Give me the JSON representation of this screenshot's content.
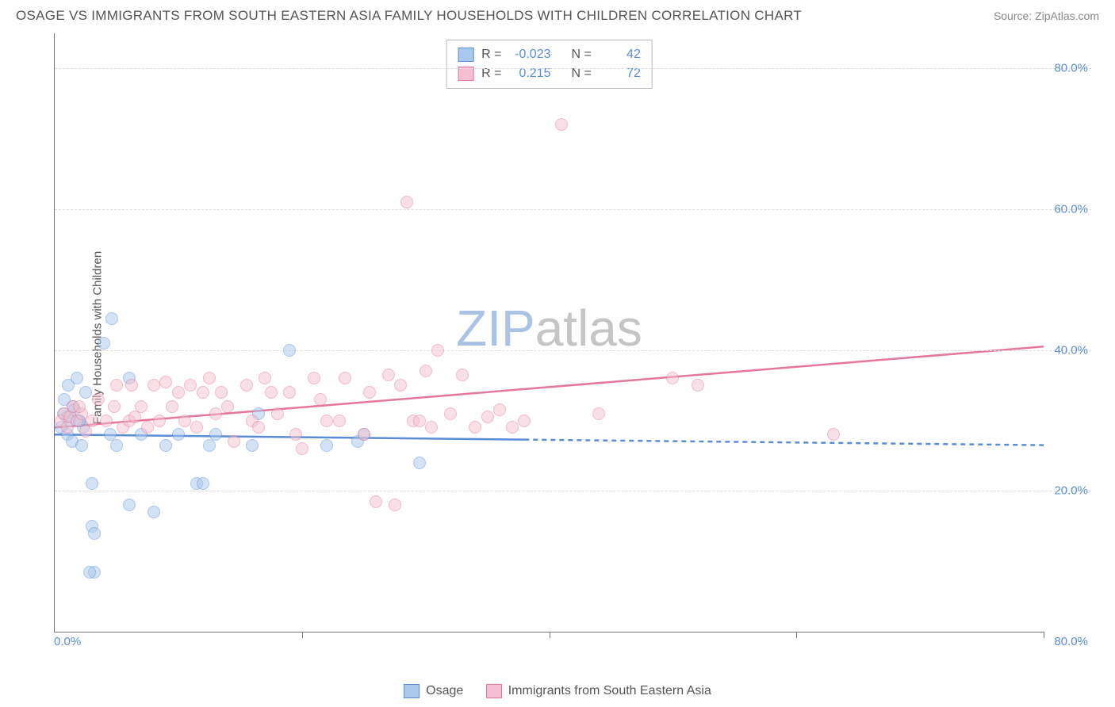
{
  "title": "OSAGE VS IMMIGRANTS FROM SOUTH EASTERN ASIA FAMILY HOUSEHOLDS WITH CHILDREN CORRELATION CHART",
  "source": "Source: ZipAtlas.com",
  "ylabel": "Family Households with Children",
  "watermark_zip": "ZIP",
  "watermark_atlas": "atlas",
  "chart": {
    "type": "scatter",
    "xlim": [
      0,
      80
    ],
    "ylim": [
      0,
      85
    ],
    "x_tick_min_label": "0.0%",
    "x_tick_max_label": "80.0%",
    "y_ticks": [
      20,
      40,
      60,
      80
    ],
    "y_tick_labels": [
      "20.0%",
      "40.0%",
      "60.0%",
      "80.0%"
    ],
    "grid_color": "#dddddd",
    "axis_color": "#777777",
    "tick_label_color": "#5b8dd6",
    "background_color": "#ffffff",
    "point_radius": 8,
    "point_opacity": 0.5
  },
  "series": [
    {
      "key": "osage",
      "label": "Osage",
      "color_fill": "#a9c8ec",
      "color_stroke": "#5b8dd6",
      "R": "-0.023",
      "N": "42",
      "trend": {
        "y_at_x0": 28,
        "y_at_xmax": 26.5,
        "solid_until_x": 38
      },
      "points": [
        [
          0.5,
          29
        ],
        [
          0.7,
          31
        ],
        [
          0.8,
          33
        ],
        [
          1.0,
          28
        ],
        [
          1.1,
          35
        ],
        [
          1.2,
          30
        ],
        [
          1.4,
          27
        ],
        [
          1.5,
          32
        ],
        [
          1.8,
          36
        ],
        [
          2.0,
          30
        ],
        [
          2.2,
          26.5
        ],
        [
          2.3,
          29
        ],
        [
          2.5,
          34
        ],
        [
          3.0,
          21
        ],
        [
          3.0,
          15
        ],
        [
          3.2,
          14
        ],
        [
          3.2,
          8.5
        ],
        [
          2.8,
          8.5
        ],
        [
          4.0,
          41
        ],
        [
          4.5,
          28
        ],
        [
          4.6,
          44.5
        ],
        [
          5.0,
          26.5
        ],
        [
          6.0,
          18
        ],
        [
          6.0,
          36
        ],
        [
          7.0,
          28
        ],
        [
          8.0,
          17
        ],
        [
          9.0,
          26.5
        ],
        [
          10.0,
          28
        ],
        [
          11.5,
          21
        ],
        [
          12.0,
          21
        ],
        [
          12.5,
          26.5
        ],
        [
          13.0,
          28
        ],
        [
          16.0,
          26.5
        ],
        [
          16.5,
          31
        ],
        [
          19.0,
          40
        ],
        [
          22.0,
          26.5
        ],
        [
          24.5,
          27
        ],
        [
          25.0,
          28
        ],
        [
          29.5,
          24
        ],
        [
          1.6,
          31.5
        ],
        [
          2.0,
          30
        ],
        [
          1.0,
          30.5
        ]
      ]
    },
    {
      "key": "seasia",
      "label": "Immigrants from South Eastern Asia",
      "color_fill": "#f4c0cf",
      "color_stroke": "#e5779c",
      "R": "0.215",
      "N": "72",
      "trend": {
        "y_at_x0": 29,
        "y_at_xmax": 40.5,
        "solid_until_x": 80
      },
      "points": [
        [
          0.5,
          30
        ],
        [
          0.8,
          31
        ],
        [
          1.0,
          29
        ],
        [
          1.2,
          30.5
        ],
        [
          1.5,
          32
        ],
        [
          1.8,
          30
        ],
        [
          2.2,
          31
        ],
        [
          2.5,
          28.5
        ],
        [
          3.0,
          30
        ],
        [
          3.5,
          33
        ],
        [
          4.2,
          30
        ],
        [
          4.8,
          32
        ],
        [
          5.0,
          35
        ],
        [
          5.5,
          29
        ],
        [
          6.0,
          30
        ],
        [
          6.2,
          35
        ],
        [
          6.5,
          30.5
        ],
        [
          7.0,
          32
        ],
        [
          7.5,
          29
        ],
        [
          8.0,
          35
        ],
        [
          8.5,
          30
        ],
        [
          9.0,
          35.5
        ],
        [
          9.5,
          32
        ],
        [
          10.0,
          34
        ],
        [
          10.5,
          30
        ],
        [
          11.0,
          35
        ],
        [
          11.5,
          29
        ],
        [
          12.0,
          34
        ],
        [
          12.5,
          36
        ],
        [
          13.0,
          31
        ],
        [
          13.5,
          34
        ],
        [
          14.0,
          32
        ],
        [
          14.5,
          27
        ],
        [
          15.5,
          35
        ],
        [
          16.0,
          30
        ],
        [
          16.5,
          29
        ],
        [
          17.0,
          36
        ],
        [
          17.5,
          34
        ],
        [
          18.0,
          31
        ],
        [
          19.0,
          34
        ],
        [
          19.5,
          28
        ],
        [
          20.0,
          26
        ],
        [
          21.0,
          36
        ],
        [
          21.5,
          33
        ],
        [
          22.0,
          30
        ],
        [
          23.0,
          30
        ],
        [
          23.5,
          36
        ],
        [
          25.0,
          28
        ],
        [
          25.5,
          34
        ],
        [
          26.0,
          18.5
        ],
        [
          27.0,
          36.5
        ],
        [
          27.5,
          18
        ],
        [
          28.0,
          35
        ],
        [
          29.0,
          30
        ],
        [
          29.5,
          30
        ],
        [
          30.0,
          37
        ],
        [
          28.5,
          61
        ],
        [
          30.5,
          29
        ],
        [
          31.0,
          40
        ],
        [
          32.0,
          31
        ],
        [
          33.0,
          36.5
        ],
        [
          34.0,
          29
        ],
        [
          35.0,
          30.5
        ],
        [
          36.0,
          31.5
        ],
        [
          37.0,
          29
        ],
        [
          38.0,
          30
        ],
        [
          41.0,
          72
        ],
        [
          44.0,
          31
        ],
        [
          50.0,
          36
        ],
        [
          52.0,
          35
        ],
        [
          63.0,
          28
        ],
        [
          2.0,
          32
        ]
      ]
    }
  ],
  "legend": {
    "r_label": "R =",
    "n_label": "N ="
  }
}
